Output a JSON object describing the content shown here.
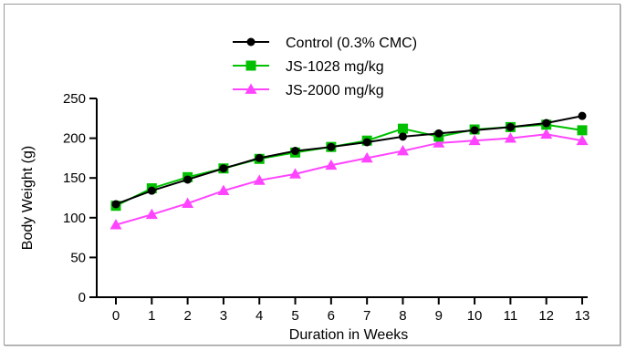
{
  "chart_data": {
    "type": "line",
    "title": "",
    "xlabel": "Duration in Weeks",
    "ylabel": "Body Weight (g)",
    "xlim": [
      0,
      13
    ],
    "ylim": [
      0,
      250
    ],
    "x_ticks": [
      0,
      1,
      2,
      3,
      4,
      5,
      6,
      7,
      8,
      9,
      10,
      11,
      12,
      13
    ],
    "y_ticks": [
      0,
      50,
      100,
      150,
      200,
      250
    ],
    "grid": false,
    "legend_position": "top-center",
    "x": [
      0,
      1,
      2,
      3,
      4,
      5,
      6,
      7,
      8,
      9,
      10,
      11,
      12,
      13
    ],
    "series": [
      {
        "name": "Control (0.3% CMC)",
        "color": "#000000",
        "marker": "circle",
        "values": [
          117,
          134,
          148,
          162,
          175,
          184,
          189,
          195,
          202,
          206,
          210,
          214,
          219,
          228
        ]
      },
      {
        "name": "JS-1028 mg/kg",
        "color": "#00c000",
        "marker": "square",
        "values": [
          115,
          137,
          151,
          162,
          174,
          182,
          189,
          197,
          212,
          202,
          211,
          214,
          217,
          210
        ]
      },
      {
        "name": "JS-2000 mg/kg",
        "color": "#ff44ff",
        "marker": "triangle",
        "values": [
          91,
          104,
          118,
          134,
          147,
          155,
          166,
          175,
          184,
          194,
          197,
          200,
          205,
          197
        ]
      }
    ]
  }
}
